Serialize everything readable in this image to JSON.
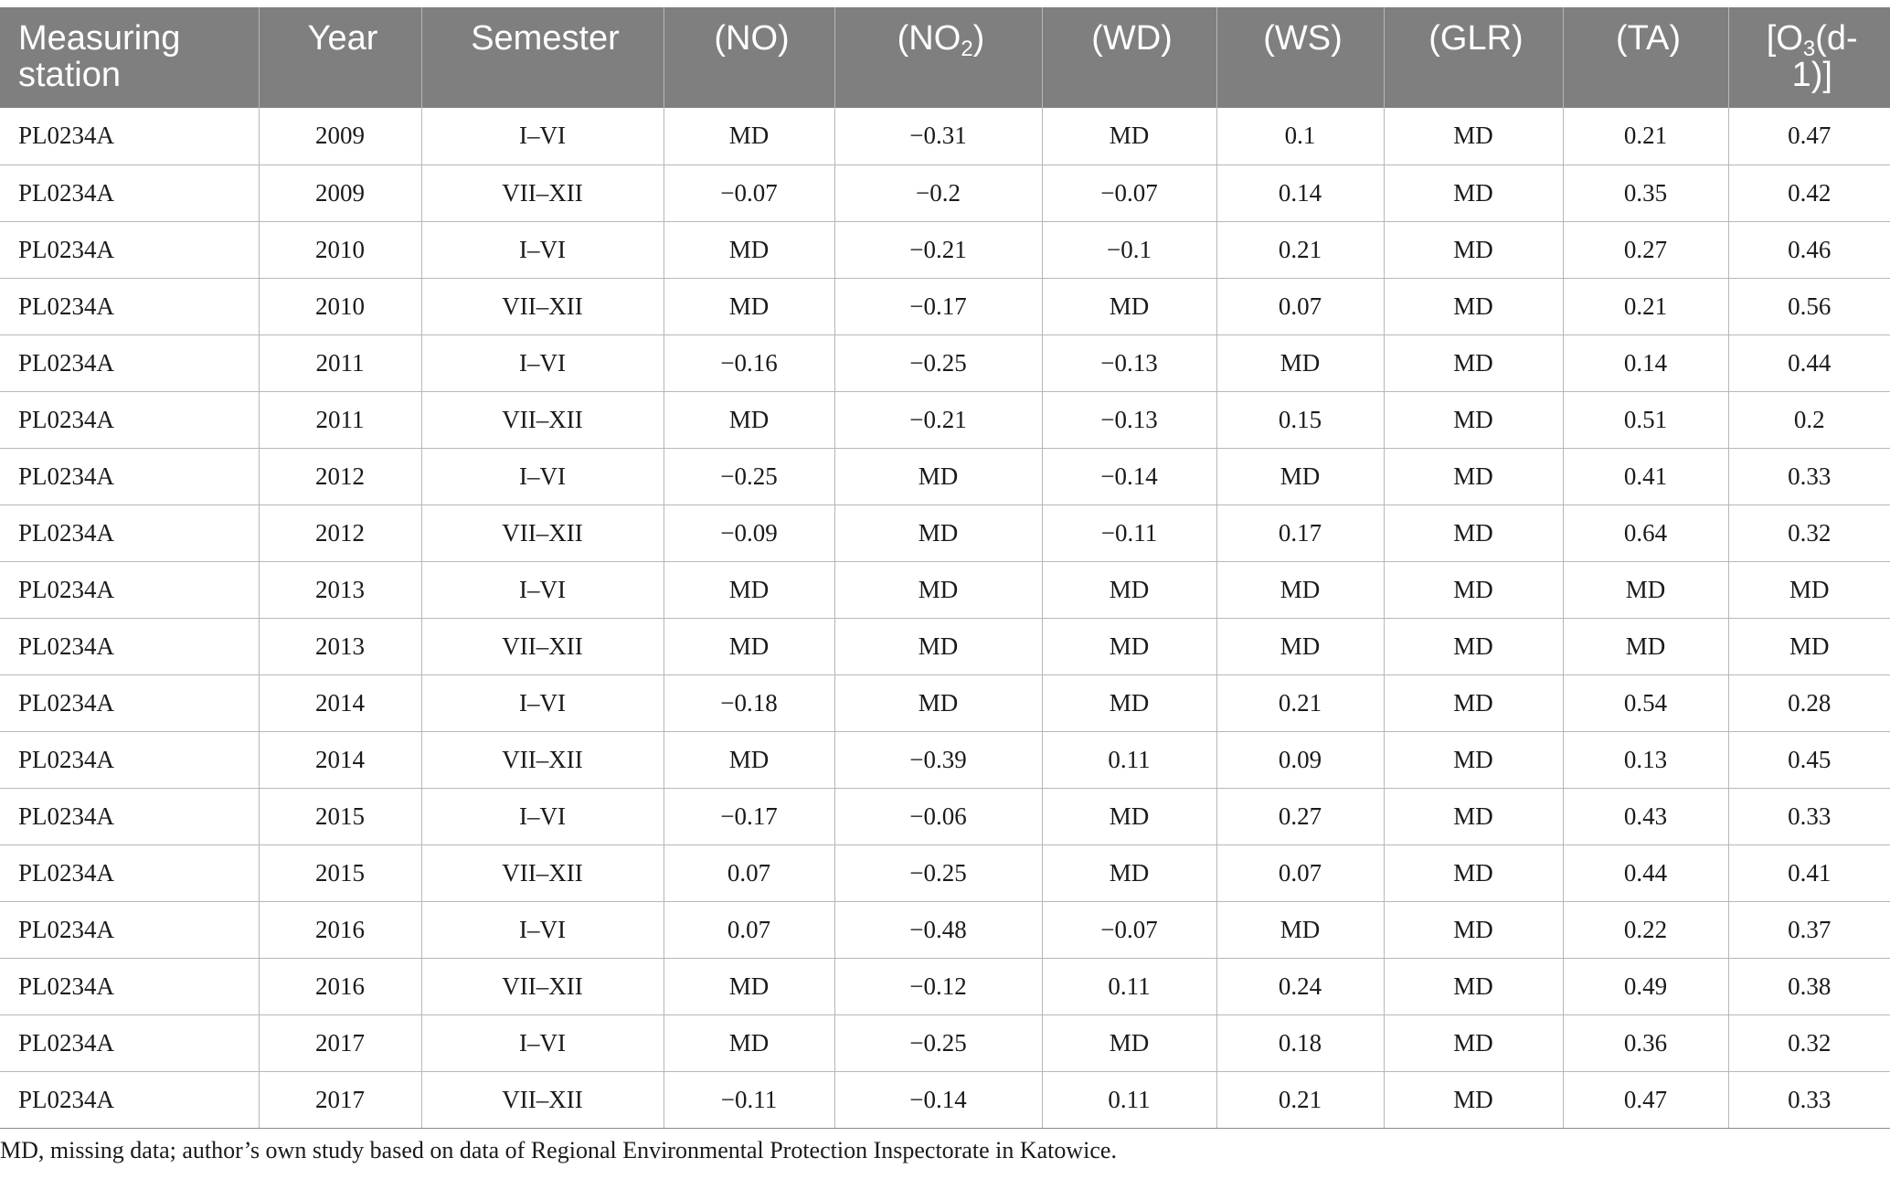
{
  "table": {
    "headers": {
      "station": "Measuring station",
      "year": "Year",
      "semester": "Semester",
      "no_pre": "(NO)",
      "no2_pre": "(NO",
      "no2_sub": "2",
      "no2_post": ")",
      "wd": "(WD)",
      "ws": "(WS)",
      "glr": "(GLR)",
      "ta": "(TA)",
      "o3_pre": "[O",
      "o3_sub": "3",
      "o3_post": "(d-1)]"
    },
    "rows": [
      [
        "PL0234A",
        "2009",
        "I–VI",
        "MD",
        "−0.31",
        "MD",
        "0.1",
        "MD",
        "0.21",
        "0.47"
      ],
      [
        "PL0234A",
        "2009",
        "VII–XII",
        "−0.07",
        "−0.2",
        "−0.07",
        "0.14",
        "MD",
        "0.35",
        "0.42"
      ],
      [
        "PL0234A",
        "2010",
        "I–VI",
        "MD",
        "−0.21",
        "−0.1",
        "0.21",
        "MD",
        "0.27",
        "0.46"
      ],
      [
        "PL0234A",
        "2010",
        "VII–XII",
        "MD",
        "−0.17",
        "MD",
        "0.07",
        "MD",
        "0.21",
        "0.56"
      ],
      [
        "PL0234A",
        "2011",
        "I–VI",
        "−0.16",
        "−0.25",
        "−0.13",
        "MD",
        "MD",
        "0.14",
        "0.44"
      ],
      [
        "PL0234A",
        "2011",
        "VII–XII",
        "MD",
        "−0.21",
        "−0.13",
        "0.15",
        "MD",
        "0.51",
        "0.2"
      ],
      [
        "PL0234A",
        "2012",
        "I–VI",
        "−0.25",
        "MD",
        "−0.14",
        "MD",
        "MD",
        "0.41",
        "0.33"
      ],
      [
        "PL0234A",
        "2012",
        "VII–XII",
        "−0.09",
        "MD",
        "−0.11",
        "0.17",
        "MD",
        "0.64",
        "0.32"
      ],
      [
        "PL0234A",
        "2013",
        "I–VI",
        "MD",
        "MD",
        "MD",
        "MD",
        "MD",
        "MD",
        "MD"
      ],
      [
        "PL0234A",
        "2013",
        "VII–XII",
        "MD",
        "MD",
        "MD",
        "MD",
        "MD",
        "MD",
        "MD"
      ],
      [
        "PL0234A",
        "2014",
        "I–VI",
        "−0.18",
        "MD",
        "MD",
        "0.21",
        "MD",
        "0.54",
        "0.28"
      ],
      [
        "PL0234A",
        "2014",
        "VII–XII",
        "MD",
        "−0.39",
        "0.11",
        "0.09",
        "MD",
        "0.13",
        "0.45"
      ],
      [
        "PL0234A",
        "2015",
        "I–VI",
        "−0.17",
        "−0.06",
        "MD",
        "0.27",
        "MD",
        "0.43",
        "0.33"
      ],
      [
        "PL0234A",
        "2015",
        "VII–XII",
        "0.07",
        "−0.25",
        "MD",
        "0.07",
        "MD",
        "0.44",
        "0.41"
      ],
      [
        "PL0234A",
        "2016",
        "I–VI",
        "0.07",
        "−0.48",
        "−0.07",
        "MD",
        "MD",
        "0.22",
        "0.37"
      ],
      [
        "PL0234A",
        "2016",
        "VII–XII",
        "MD",
        "−0.12",
        "0.11",
        "0.24",
        "MD",
        "0.49",
        "0.38"
      ],
      [
        "PL0234A",
        "2017",
        "I–VI",
        "MD",
        "−0.25",
        "MD",
        "0.18",
        "MD",
        "0.36",
        "0.32"
      ],
      [
        "PL0234A",
        "2017",
        "VII–XII",
        "−0.11",
        "−0.14",
        "0.11",
        "0.21",
        "MD",
        "0.47",
        "0.33"
      ]
    ]
  },
  "footnote": "MD, missing data; author’s own study based on data of Regional Environmental Protection Inspectorate in Katowice.",
  "colors": {
    "header_bg": "#7f7f7f",
    "header_text": "#ffffff",
    "grid": "#b7b7b7"
  }
}
